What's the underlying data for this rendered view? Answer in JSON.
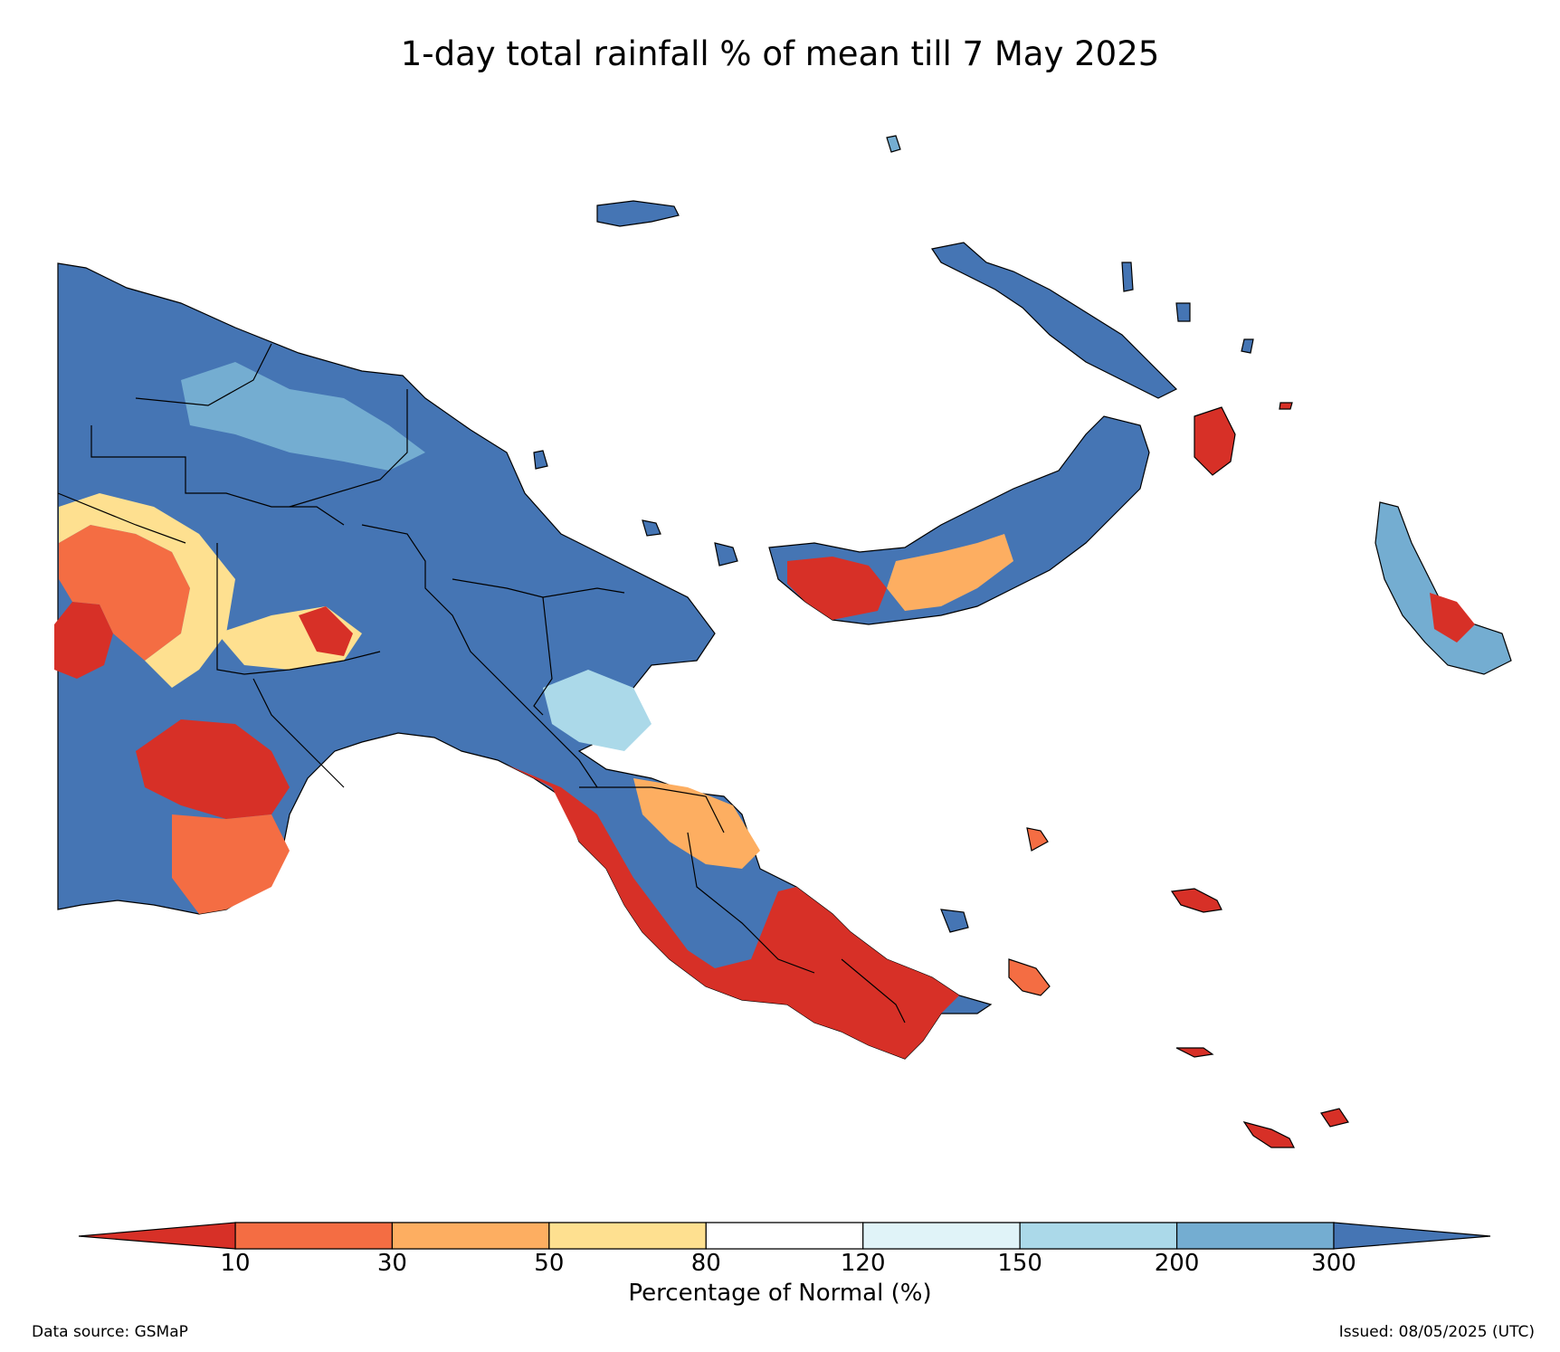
{
  "title": "1-day total rainfall % of mean till 7 May 2025",
  "colorbar": {
    "label": "Percentage of Normal (%)",
    "ticks": [
      "10",
      "30",
      "50",
      "80",
      "120",
      "150",
      "200",
      "300"
    ],
    "colors": [
      "#d73027",
      "#f46d43",
      "#fdae61",
      "#fee090",
      "#ffffff",
      "#e0f3f8",
      "#abd9e9",
      "#74add1",
      "#4575b4"
    ],
    "extend": "both"
  },
  "legend_bins": [
    {
      "range": "<10",
      "color": "#d73027"
    },
    {
      "range": "10-30",
      "color": "#f46d43"
    },
    {
      "range": "30-50",
      "color": "#fdae61"
    },
    {
      "range": "50-80",
      "color": "#fee090"
    },
    {
      "range": "80-120",
      "color": "#ffffff"
    },
    {
      "range": "120-150",
      "color": "#e0f3f8"
    },
    {
      "range": "150-200",
      "color": "#abd9e9"
    },
    {
      "range": "200-300",
      "color": "#74add1"
    },
    {
      "range": ">300",
      "color": "#4575b4"
    }
  ],
  "footer": {
    "source": "Data source: GSMaP",
    "issued": "Issued: 08/05/2025 (UTC)"
  }
}
